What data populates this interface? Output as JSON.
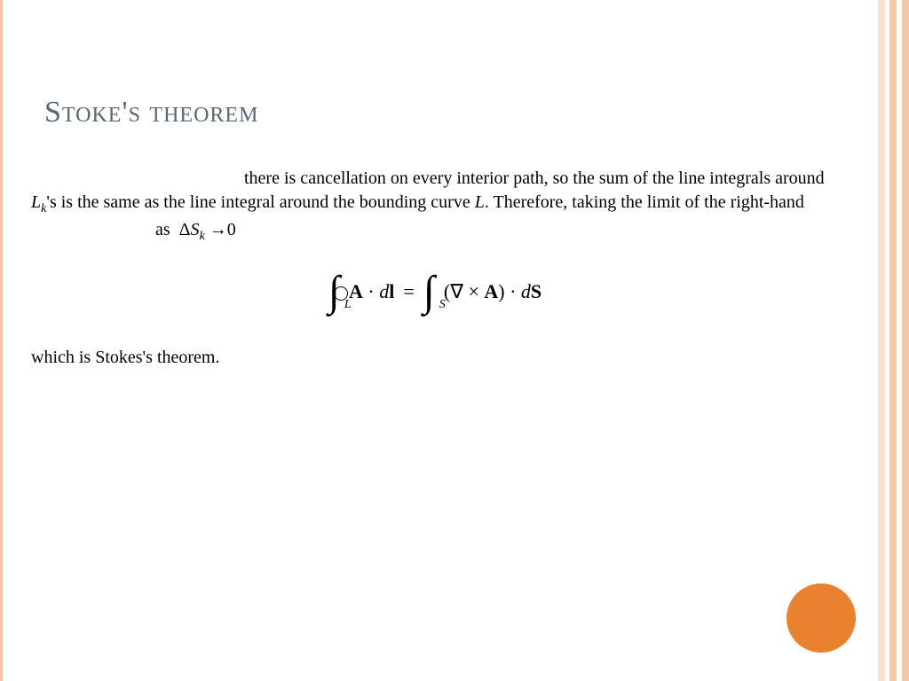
{
  "slide": {
    "title": "Stoke's theorem",
    "title_color": "#5a6775",
    "title_fontsize": 34,
    "body": {
      "text_part1": "there is cancellation on every interior path, so the sum of the line integrals around ",
      "math_Lk": "L",
      "math_Lk_sub": "k",
      "text_part2": "'s is the same as the line integral around the bounding curve ",
      "math_L": "L",
      "text_part3": ". Therefore, taking the limit of the right-hand",
      "text_as": "as",
      "math_limit_delta": "Δ",
      "math_limit_S": "S",
      "math_limit_sub": "k",
      "math_limit_arrow": "→",
      "math_limit_zero": "0",
      "closing": "which is Stokes's theorem.",
      "fontsize": 20,
      "color": "#000000"
    },
    "equation": {
      "oint_sym": "∮",
      "oint_sub": "L",
      "A": "A",
      "dot": "·",
      "dl": "d",
      "l_bold": "l",
      "equals": "=",
      "int_sym": "∫",
      "int_sub": "S",
      "lparen": "(",
      "nabla": "∇",
      "cross": "×",
      "rparen": ")",
      "dS_d": "d",
      "dS_S": "S",
      "fontsize": 24
    },
    "decoration": {
      "circle_color": "#e9822f",
      "circle_diameter": 78,
      "border_color_dark": "#f7c5a8",
      "border_color_light": "#fadfcf"
    },
    "background_color": "#ffffff"
  }
}
